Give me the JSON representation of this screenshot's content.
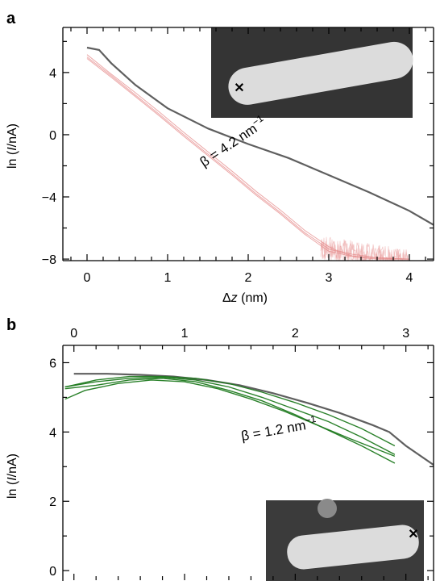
{
  "colors": {
    "reference_curve": "#5f5f5f",
    "panel_a_traces": "#e58c8c",
    "panel_b_traces": "#1f7a1f",
    "marker_a": "#d42020",
    "marker_b": "#2a9a2a",
    "stm_background": "#3a3a3a",
    "stm_molecule": "#dcdcdc"
  },
  "icons": {
    "marker_a": "red-cross-marker-icon",
    "marker_b": "green-cross-marker-icon"
  },
  "chart_data": [
    {
      "panel_label": "a",
      "type": "line",
      "xlabel_prefix": "Δ",
      "xlabel_var": "z",
      "xlabel_unit": " (nm)",
      "ylabel_open": "ln (",
      "ylabel_var": "I",
      "ylabel_close": "/nA)",
      "xlim": [
        -0.3,
        4.3
      ],
      "ylim": [
        -8.1,
        6.9
      ],
      "xticks": [
        0,
        1,
        2,
        3,
        4
      ],
      "xtick_labels": [
        "0",
        "1",
        "2",
        "3",
        "4"
      ],
      "yticks": [
        -8,
        -4,
        0,
        4
      ],
      "ytick_labels": [
        "−8",
        "−4",
        "0",
        "4"
      ],
      "annotation": {
        "prefix": "β = 4.2 nm",
        "sup": "−1",
        "x": 1.45,
        "y": -2.1,
        "rotation": -34
      },
      "grid": false,
      "series": [
        {
          "color_key": "reference_curve",
          "kind": "reference",
          "x": [
            0,
            0.15,
            0.3,
            0.6,
            1.0,
            1.5,
            2.0,
            2.5,
            3.0,
            3.5,
            4.0,
            4.3
          ],
          "y": [
            5.6,
            5.45,
            4.6,
            3.2,
            1.7,
            0.4,
            -0.6,
            -1.5,
            -2.6,
            -3.7,
            -4.9,
            -5.8
          ]
        },
        {
          "color_key": "panel_a_traces",
          "kind": "trace",
          "x": [
            0,
            0.3,
            0.6,
            0.9,
            1.2,
            1.5,
            1.8,
            2.1,
            2.4,
            2.7,
            3.0,
            3.1,
            3.3,
            3.6,
            4.0
          ],
          "y": [
            5.0,
            3.8,
            2.55,
            1.3,
            0.0,
            -1.25,
            -2.5,
            -3.8,
            -5.0,
            -6.3,
            -7.35,
            -7.5,
            -7.8,
            -7.95,
            -8.0
          ]
        },
        {
          "color_key": "panel_a_traces",
          "kind": "trace",
          "x": [
            0,
            0.3,
            0.6,
            0.9,
            1.2,
            1.5,
            1.8,
            2.1,
            2.4,
            2.7,
            3.0,
            3.1,
            3.3,
            3.6,
            4.0
          ],
          "y": [
            5.15,
            3.9,
            2.7,
            1.45,
            0.15,
            -1.1,
            -2.35,
            -3.65,
            -4.85,
            -6.15,
            -7.2,
            -7.45,
            -7.7,
            -7.9,
            -8.0
          ]
        },
        {
          "color_key": "panel_a_traces",
          "kind": "trace",
          "x": [
            0,
            0.3,
            0.6,
            0.9,
            1.2,
            1.5,
            1.8,
            2.1,
            2.4,
            2.7,
            3.0,
            3.1,
            3.3,
            3.6,
            4.0
          ],
          "y": [
            4.9,
            3.7,
            2.45,
            1.2,
            -0.1,
            -1.35,
            -2.6,
            -3.9,
            -5.1,
            -6.4,
            -7.5,
            -7.6,
            -7.85,
            -8.0,
            -8.0
          ]
        }
      ]
    },
    {
      "panel_label": "b",
      "type": "line",
      "ylabel_open": "ln (",
      "ylabel_var": "I",
      "ylabel_close": "/nA)",
      "xaxis_position": "top",
      "xlim": [
        -0.1,
        3.25
      ],
      "ylim": [
        -0.3,
        6.5
      ],
      "xticks": [
        0,
        1,
        2,
        3
      ],
      "xtick_labels": [
        "0",
        "1",
        "2",
        "3"
      ],
      "yticks": [
        0,
        2,
        4,
        6
      ],
      "ytick_labels": [
        "0",
        "2",
        "4",
        "6"
      ],
      "annotation": {
        "prefix": "β = 1.2 nm",
        "sup": "−1",
        "x": 1.52,
        "y": 3.75,
        "rotation": -10
      },
      "grid": false,
      "series": [
        {
          "color_key": "reference_curve",
          "kind": "reference",
          "x": [
            0,
            0.3,
            0.6,
            0.9,
            1.2,
            1.5,
            1.8,
            2.1,
            2.4,
            2.7,
            2.85,
            3.0,
            3.25
          ],
          "y": [
            5.68,
            5.68,
            5.65,
            5.6,
            5.5,
            5.35,
            5.12,
            4.85,
            4.55,
            4.2,
            4.0,
            3.6,
            3.05
          ]
        },
        {
          "color_key": "panel_b_traces",
          "kind": "trace",
          "x": [
            -0.08,
            0.2,
            0.5,
            0.8,
            1.1,
            1.4,
            1.7,
            2.0,
            2.3,
            2.6,
            2.9
          ],
          "y": [
            5.3,
            5.45,
            5.55,
            5.58,
            5.5,
            5.3,
            5.0,
            4.65,
            4.3,
            3.85,
            3.35
          ]
        },
        {
          "color_key": "panel_b_traces",
          "kind": "trace",
          "x": [
            -0.08,
            0.2,
            0.5,
            0.8,
            1.1,
            1.4,
            1.7,
            2.0,
            2.3,
            2.6,
            2.9
          ],
          "y": [
            5.25,
            5.35,
            5.5,
            5.55,
            5.45,
            5.2,
            4.9,
            4.5,
            4.05,
            3.6,
            3.1
          ]
        },
        {
          "color_key": "panel_b_traces",
          "kind": "trace",
          "x": [
            -0.08,
            0.1,
            0.4,
            0.7,
            1.0,
            1.3,
            1.6,
            1.9,
            2.2,
            2.5,
            2.9
          ],
          "y": [
            4.95,
            5.2,
            5.4,
            5.5,
            5.45,
            5.25,
            4.95,
            4.6,
            4.2,
            3.8,
            3.3
          ]
        },
        {
          "color_key": "panel_b_traces",
          "kind": "trace",
          "x": [
            -0.08,
            0.2,
            0.5,
            0.8,
            1.1,
            1.4,
            1.7,
            2.0,
            2.3,
            2.6,
            2.9
          ],
          "y": [
            5.3,
            5.5,
            5.6,
            5.6,
            5.55,
            5.4,
            5.15,
            4.85,
            4.5,
            4.1,
            3.6
          ]
        }
      ]
    }
  ]
}
